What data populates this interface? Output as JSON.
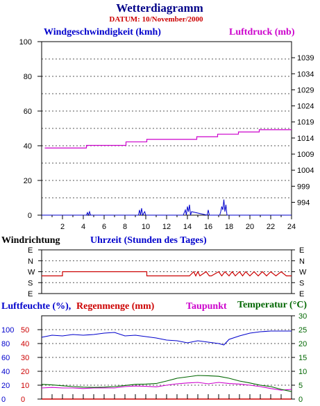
{
  "title": "Wetterdiagramm",
  "date": "DATUM: 10/November/2000",
  "colors": {
    "wind_speed": "#0000cc",
    "pressure": "#cc00cc",
    "direction": "#cc0000",
    "humidity": "#0000cc",
    "rain": "#cc0000",
    "dewpoint": "#cc00cc",
    "temperature": "#006600"
  },
  "panel1": {
    "left_label": "Windgeschwindigkeit (kmh)",
    "right_label": "Luftdruck (mb)",
    "x_label": "Uhrzeit (Stunden des Tages)"
  },
  "panel2": {
    "label": "Windrichtung"
  },
  "panel3": {
    "humidity_label": "Luftfeuchte (%),",
    "rain_label": "Regenmenge (mm)",
    "dewpoint_label": "Taupunkt",
    "temp_label": "Temperatur (",
    "temp_unit": "°C)"
  },
  "chart_data": [
    {
      "type": "line",
      "title": "",
      "xlabel": "Uhrzeit (Stunden des Tages)",
      "xlim": [
        0,
        24
      ],
      "x_ticks": [
        "2",
        "4",
        "6",
        "8",
        "10",
        "12",
        "14",
        "16",
        "18",
        "20",
        "22",
        "24"
      ],
      "ylabel_left": "Windgeschwindigkeit (kmh)",
      "ylim_left": [
        0,
        100
      ],
      "y_ticks_left": [
        "0",
        "20",
        "40",
        "60",
        "80",
        "100"
      ],
      "ylabel_right": "Luftdruck (mb)",
      "ylim_right": [
        990,
        1044
      ],
      "y_ticks_right": [
        "994",
        "999",
        "1004",
        "1009",
        "1014",
        "1019",
        "1024",
        "1029",
        "1034",
        "1039"
      ],
      "grid": true,
      "series": [
        {
          "name": "Windgeschwindigkeit (kmh)",
          "axis": "left",
          "x": [
            0,
            4.3,
            4.4,
            4.5,
            4.6,
            4.7,
            9.3,
            9.4,
            9.5,
            9.6,
            9.7,
            9.9,
            10.0,
            10.1,
            13.6,
            13.8,
            13.9,
            14.0,
            14.1,
            14.2,
            14.3,
            14.4,
            15.9,
            16.0,
            16.1,
            17.1,
            17.2,
            17.3,
            17.4,
            17.5,
            17.6,
            17.7,
            17.8,
            24
          ],
          "y": [
            0,
            0,
            1.5,
            0,
            2,
            0,
            0,
            3,
            0,
            4,
            0,
            2,
            0,
            0,
            0,
            3,
            0,
            5,
            2,
            6,
            0,
            2,
            0,
            3,
            0,
            0,
            2,
            5,
            3,
            9,
            2,
            6,
            0,
            0
          ]
        },
        {
          "name": "Luftdruck (mb)",
          "axis": "right",
          "x": [
            0.3,
            4.3,
            4.3,
            8.1,
            8.1,
            10.1,
            10.1,
            14.9,
            14.9,
            16.9,
            16.9,
            18.9,
            18.9,
            20.9,
            20.9,
            24
          ],
          "y": [
            1010.9,
            1010.9,
            1011.7,
            1011.7,
            1012.8,
            1012.8,
            1013.6,
            1013.6,
            1014.4,
            1014.4,
            1015.2,
            1015.2,
            1015.9,
            1015.9,
            1016.6,
            1016.6
          ]
        }
      ]
    },
    {
      "type": "line",
      "title": "",
      "ylabel": "Windrichtung",
      "xlim": [
        0,
        24
      ],
      "y_categories": [
        "N",
        "E",
        "S",
        "W",
        "N",
        "E",
        "S",
        "W"
      ],
      "y_ticks": [
        "E",
        "N",
        "W",
        "S",
        "E"
      ],
      "grid": true,
      "series": [
        {
          "name": "Windrichtung",
          "x": [
            0,
            2.0,
            2.0,
            10.1,
            10.1,
            14.2,
            14.6,
            14.8,
            15.0,
            15.2,
            15.8,
            16.1,
            16.3,
            17.0,
            17.3,
            17.6,
            18.0,
            18.3,
            18.6,
            19.0,
            19.3,
            19.6,
            20.0,
            20.4,
            20.8,
            21.2,
            21.6,
            22.0,
            22.5,
            23.0,
            23.5,
            24
          ],
          "y": [
            "WSW",
            "WSW",
            "W",
            "W",
            "WSW",
            "WSW",
            "W",
            "WSW",
            "W",
            "WSW",
            "W",
            "WSW",
            "WSW",
            "W",
            "WSW",
            "W",
            "WSW",
            "W",
            "WSW",
            "W",
            "WSW",
            "W",
            "WSW",
            "W",
            "WSW",
            "W",
            "WSW",
            "W",
            "WSW",
            "W",
            "WSW",
            "WSW"
          ]
        }
      ]
    },
    {
      "type": "line",
      "title": "",
      "xlim": [
        0,
        24
      ],
      "ylabel_left_outer": "Luftfeuchte (%)",
      "ylim_left_outer": [
        0,
        120
      ],
      "y_ticks_left_outer": [
        "0",
        "20",
        "40",
        "60",
        "80",
        "100"
      ],
      "ylabel_left_inner": "Regenmenge (mm)",
      "ylim_left_inner": [
        0,
        60
      ],
      "y_ticks_left_inner": [
        "0",
        "10",
        "20",
        "30",
        "40",
        "50"
      ],
      "ylabel_right": "Temperatur (°C)",
      "ylim_right": [
        0,
        30
      ],
      "y_ticks_right": [
        "0",
        "5",
        "10",
        "15",
        "20",
        "25",
        "30"
      ],
      "grid": true,
      "series": [
        {
          "name": "Luftfeuchte",
          "axis": "left_outer",
          "x": [
            0,
            1,
            2,
            3,
            4,
            5,
            6,
            7,
            8,
            9,
            10,
            11,
            12,
            13,
            14,
            15,
            16,
            17,
            17.5,
            18,
            19,
            20,
            21,
            22,
            23,
            24
          ],
          "y": [
            89,
            92,
            91,
            93,
            92,
            93,
            95,
            96,
            91,
            92,
            90,
            88,
            85,
            84,
            81,
            84,
            82,
            80,
            78,
            86,
            91,
            95,
            97,
            98,
            98,
            98
          ],
          "color": "#0000cc"
        },
        {
          "name": "Regenmenge",
          "axis": "left_inner",
          "x": [
            0,
            16.5,
            24
          ],
          "y": [
            0,
            0,
            0
          ],
          "color": "#cc0000"
        },
        {
          "name": "Taupunkt",
          "axis": "right",
          "x": [
            0,
            1,
            2,
            3,
            4,
            5,
            6,
            7,
            8,
            9,
            10,
            11,
            12,
            13,
            14,
            15,
            16,
            17,
            18,
            19,
            20,
            21,
            22,
            23,
            24
          ],
          "y": [
            4,
            4.2,
            4,
            4,
            3.8,
            4,
            4,
            4,
            4.5,
            4.7,
            4.6,
            4.4,
            5,
            5.5,
            5.8,
            6,
            5.5,
            6,
            5.6,
            5.4,
            5,
            4.5,
            3.8,
            3.2,
            3.5
          ]
        },
        {
          "name": "Temperatur",
          "axis": "right",
          "x": [
            0,
            1,
            2,
            3,
            4,
            5,
            6,
            7,
            8,
            9,
            10,
            11,
            12,
            13,
            14,
            15,
            16,
            17,
            18,
            19,
            20,
            21,
            22,
            23,
            24
          ],
          "y": [
            5.3,
            5.1,
            4.8,
            4.5,
            4.3,
            4.2,
            4.3,
            4.5,
            4.9,
            5.3,
            5.4,
            5.6,
            6.5,
            7.5,
            8.0,
            8.5,
            8.4,
            8.2,
            7.5,
            6.5,
            5.8,
            5.0,
            4.5,
            3.5,
            2.7
          ]
        }
      ]
    }
  ]
}
